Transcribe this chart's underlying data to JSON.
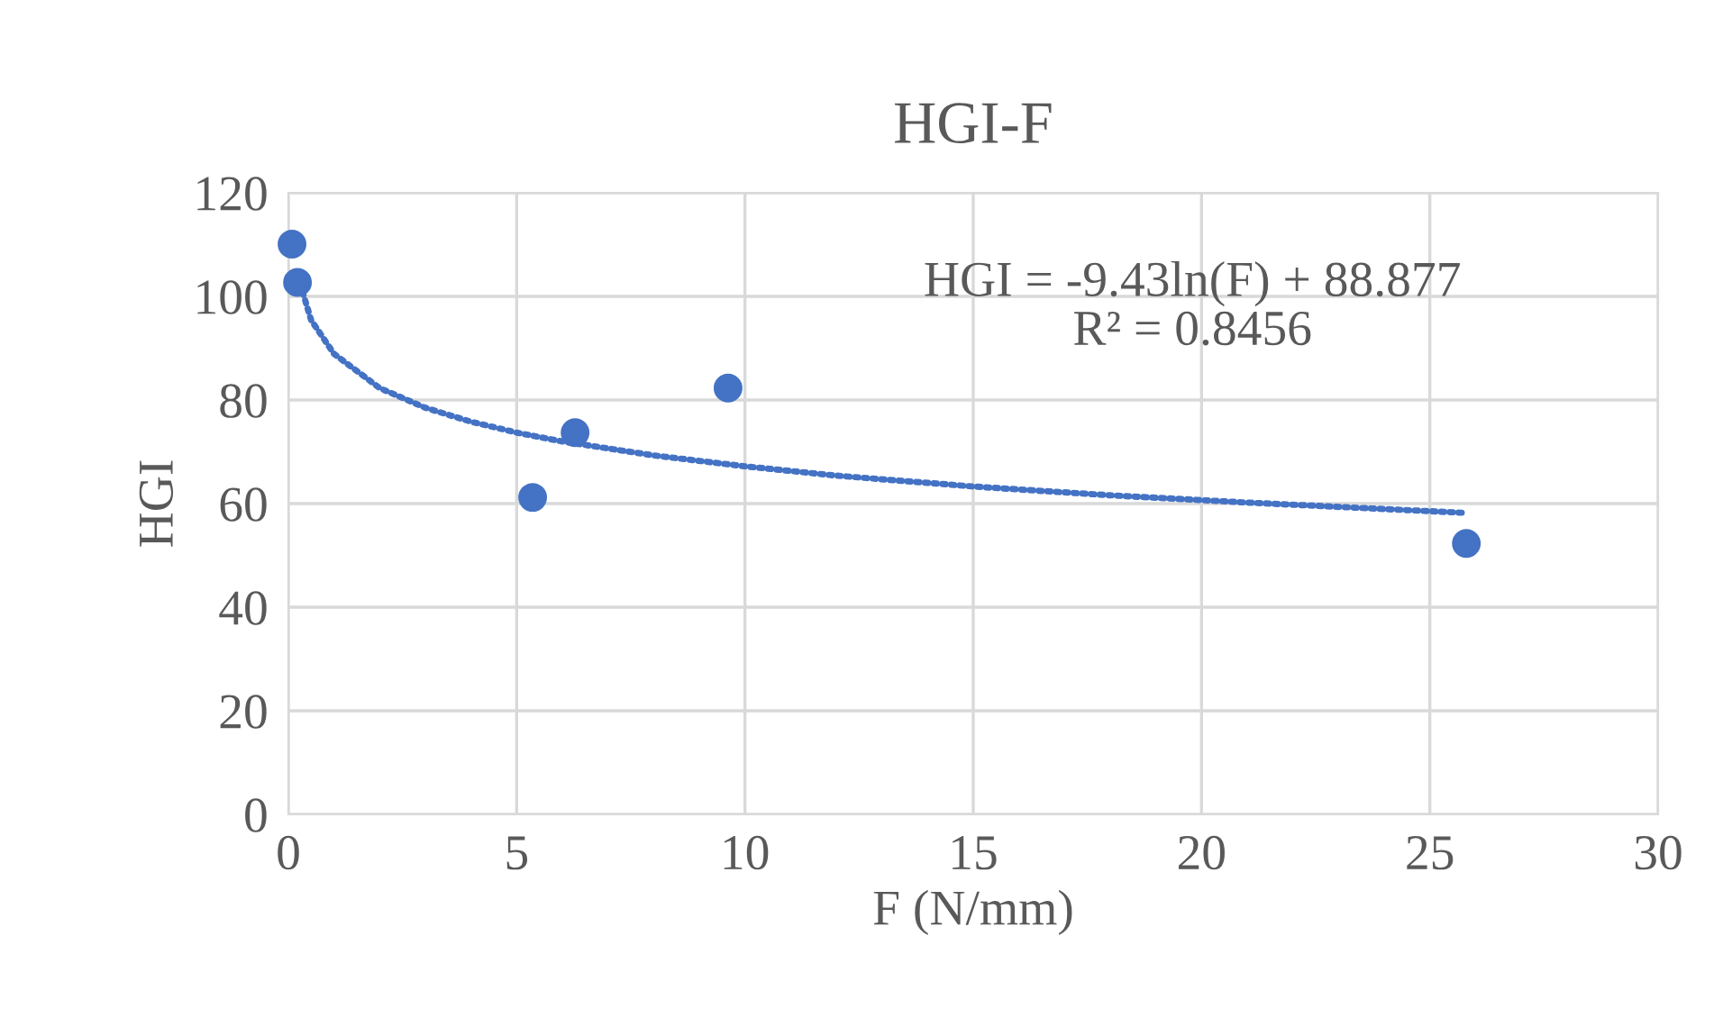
{
  "chart_data": {
    "type": "scatter",
    "title": "HGI-F",
    "xlabel": "F (N/mm)",
    "ylabel": "HGI",
    "xlim": [
      0,
      30
    ],
    "xticks": [
      0,
      5,
      10,
      15,
      20,
      25,
      30
    ],
    "ylim": [
      0,
      120
    ],
    "yticks": [
      0,
      20,
      40,
      60,
      80,
      100,
      120
    ],
    "grid": true,
    "legend": false,
    "series": [
      {
        "color": "#4472c4",
        "marker": "circle",
        "x": [
          0.08,
          0.2,
          5.35,
          6.28,
          9.63,
          25.8
        ],
        "values": [
          110.1,
          102.7,
          61.2,
          73.7,
          82.3,
          52.3
        ]
      },
      {
        "type": "line",
        "color": "#4472c4",
        "line_style": "dotted",
        "marker": "none",
        "x": [
          0.2,
          0.5,
          1,
          2,
          3,
          4,
          5,
          6,
          8,
          10,
          12,
          15,
          18,
          21,
          25.8
        ],
        "values": [
          104.1,
          95.4,
          88.9,
          82.3,
          78.5,
          75.8,
          73.7,
          72.0,
          69.3,
          67.2,
          65.4,
          63.3,
          61.6,
          60.2,
          58.2
        ]
      }
    ],
    "annotations": [
      "HGI = -9.43ln(F) + 88.877\nR² = 0.8456"
    ]
  }
}
